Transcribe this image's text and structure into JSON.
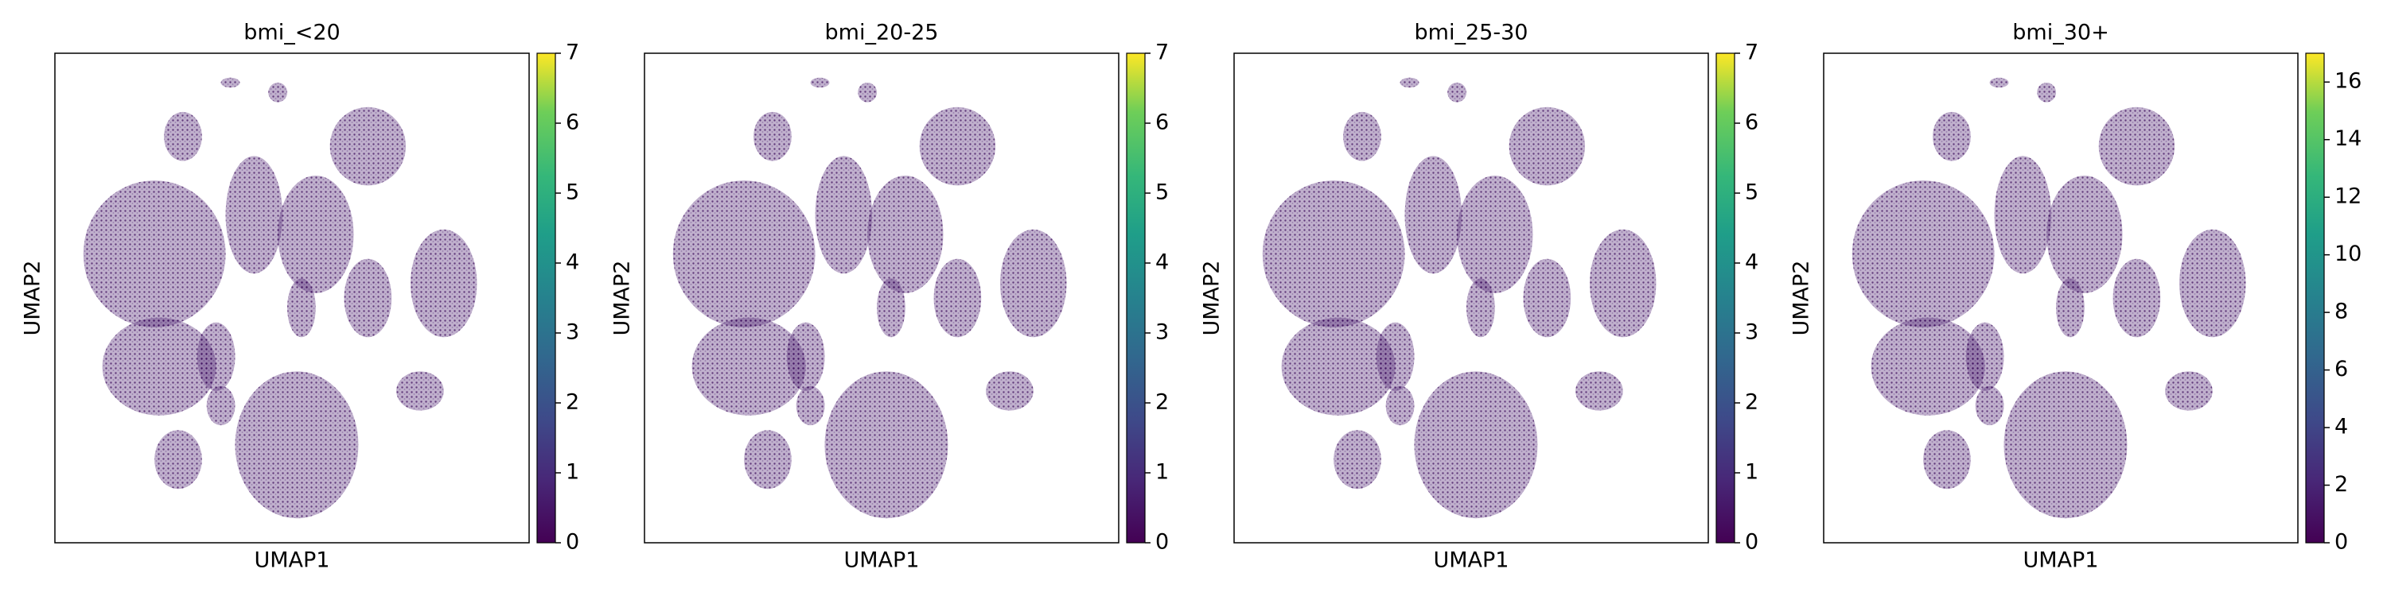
{
  "chart_data": [
    {
      "type": "scatter",
      "title": "bmi_<20",
      "xlabel": "UMAP1",
      "ylabel": "UMAP2",
      "colormap": "viridis",
      "clim": [
        0,
        7
      ],
      "cticks": [
        0,
        1,
        2,
        3,
        4,
        5,
        6,
        7
      ]
    },
    {
      "type": "scatter",
      "title": "bmi_20-25",
      "xlabel": "UMAP1",
      "ylabel": "UMAP2",
      "colormap": "viridis",
      "clim": [
        0,
        7
      ],
      "cticks": [
        0,
        1,
        2,
        3,
        4,
        5,
        6,
        7
      ]
    },
    {
      "type": "scatter",
      "title": "bmi_25-30",
      "xlabel": "UMAP1",
      "ylabel": "UMAP2",
      "colormap": "viridis",
      "clim": [
        0,
        7
      ],
      "cticks": [
        0,
        1,
        2,
        3,
        4,
        5,
        6,
        7
      ]
    },
    {
      "type": "scatter",
      "title": "bmi_30+",
      "xlabel": "UMAP1",
      "ylabel": "UMAP2",
      "colormap": "viridis",
      "clim": [
        0,
        17
      ],
      "cticks": [
        0,
        2,
        4,
        6,
        8,
        10,
        12,
        14,
        16
      ]
    }
  ]
}
